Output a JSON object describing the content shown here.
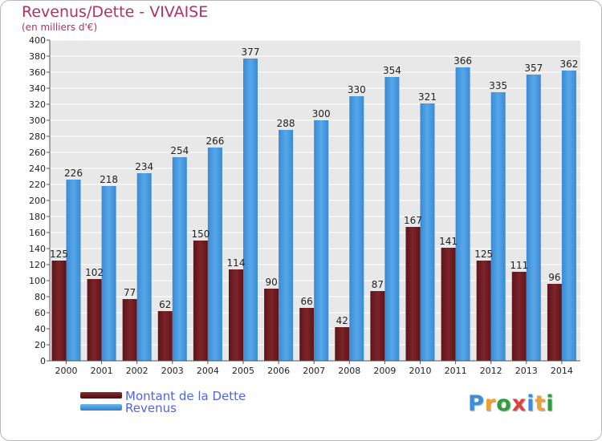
{
  "title": "Revenus/Dette - VIVAISE",
  "subtitle": "(en milliers d'€)",
  "logo": {
    "text": "Proxiti",
    "colors": [
      "#3a8fd8",
      "#f0a030",
      "#2e9e3e",
      "#e2403f",
      "#3a8fd8",
      "#f0a030",
      "#2e9e3e"
    ]
  },
  "legend": [
    {
      "label": "Montant de la Dette",
      "color": "#6b1a1f"
    },
    {
      "label": "Revenus",
      "color": "#3c8fd6"
    }
  ],
  "chart_data": {
    "type": "bar",
    "title": "Revenus/Dette - VIVAISE",
    "subtitle": "(en milliers d'€)",
    "categories": [
      "2000",
      "2001",
      "2002",
      "2003",
      "2004",
      "2005",
      "2006",
      "2007",
      "2008",
      "2009",
      "2010",
      "2011",
      "2012",
      "2013",
      "2014"
    ],
    "series": [
      {
        "name": "Montant de la Dette",
        "color": "#7a1f24",
        "values": [
          125,
          102,
          77,
          62,
          150,
          114,
          90,
          66,
          42,
          87,
          167,
          141,
          125,
          111,
          96
        ]
      },
      {
        "name": "Revenus",
        "color": "#4a9be0",
        "values": [
          226,
          218,
          234,
          254,
          266,
          377,
          288,
          300,
          330,
          354,
          321,
          366,
          335,
          357,
          362
        ]
      }
    ],
    "ylim": [
      0,
      400
    ],
    "ytick_step": 20,
    "grid": true,
    "legend_position": "bottom-left"
  }
}
